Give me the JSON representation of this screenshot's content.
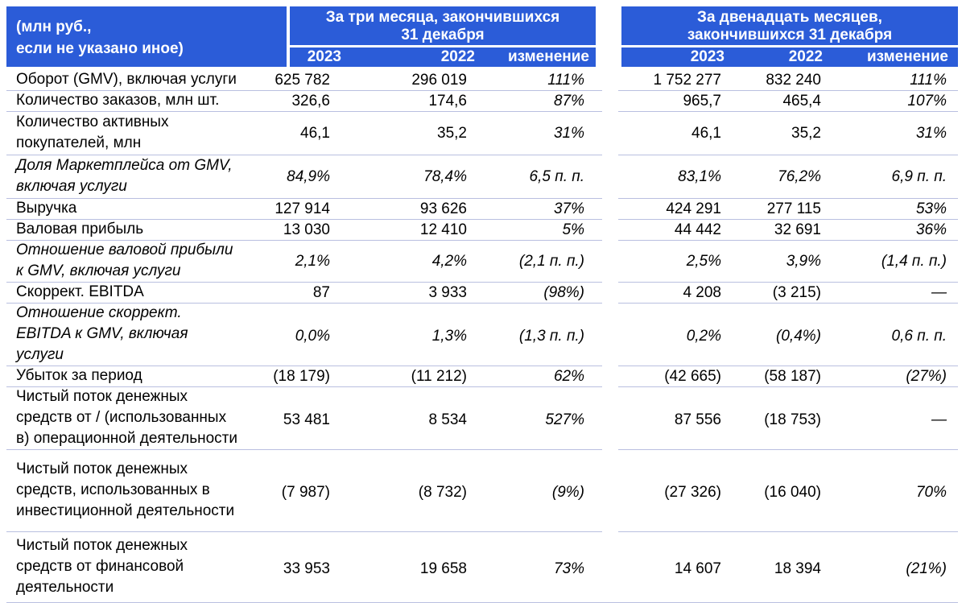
{
  "header": {
    "units_label": "(млн руб., если не указано иное)",
    "units_line1": "(млн руб.,",
    "units_line2": "если не указано иное)",
    "quarter_title_line1": "За три месяца, закончившихся",
    "quarter_title_line2": "31 декабря",
    "annual_title_line1": "За двенадцать месяцев,",
    "annual_title_line2": "закончившихся 31 декабря",
    "col_2023": "2023",
    "col_2022": "2022",
    "col_change": "изменение"
  },
  "rows": [
    {
      "label_lines": [
        "Оборот (GMV), включая услуги"
      ],
      "italic": false,
      "q2023": "625 782",
      "q2022": "296 019",
      "qchg": "111%",
      "a2023": "1 752 277",
      "a2022": "832 240",
      "achg": "111%"
    },
    {
      "label_lines": [
        "Количество заказов, млн шт."
      ],
      "italic": false,
      "q2023": "326,6",
      "q2022": "174,6",
      "qchg": "87%",
      "a2023": "965,7",
      "a2022": "465,4",
      "achg": "107%"
    },
    {
      "label_lines": [
        "Количество активных",
        "покупателей, млн"
      ],
      "italic": false,
      "q2023": "46,1",
      "q2022": "35,2",
      "qchg": "31%",
      "a2023": "46,1",
      "a2022": "35,2",
      "achg": "31%"
    },
    {
      "label_lines": [
        "Доля Маркетплейса от GMV,",
        "включая услуги"
      ],
      "italic": true,
      "q2023": "84,9%",
      "q2022": "78,4%",
      "qchg": "6,5 п. п.",
      "a2023": "83,1%",
      "a2022": "76,2%",
      "achg": "6,9 п. п."
    },
    {
      "label_lines": [
        "Выручка"
      ],
      "italic": false,
      "q2023": "127 914",
      "q2022": "93 626",
      "qchg": "37%",
      "a2023": "424 291",
      "a2022": "277 115",
      "achg": "53%"
    },
    {
      "label_lines": [
        "Валовая прибыль"
      ],
      "italic": false,
      "q2023": "13 030",
      "q2022": "12 410",
      "qchg": "5%",
      "a2023": "44 442",
      "a2022": "32 691",
      "achg": "36%"
    },
    {
      "label_lines": [
        "Отношение валовой прибыли",
        "к GMV, включая услуги"
      ],
      "italic": true,
      "q2023": "2,1%",
      "q2022": "4,2%",
      "qchg": "(2,1 п. п.)",
      "a2023": "2,5%",
      "a2022": "3,9%",
      "achg": "(1,4 п. п.)"
    },
    {
      "label_lines": [
        "Скоррект. EBITDA"
      ],
      "italic": false,
      "q2023": "87",
      "q2022": "3 933",
      "qchg": "(98%)",
      "a2023": "4 208",
      "a2022": "(3 215)",
      "achg": "—"
    },
    {
      "label_lines": [
        "Отношение скоррект.",
        "EBITDA к GMV, включая",
        "услуги"
      ],
      "italic": true,
      "q2023": "0,0%",
      "q2022": "1,3%",
      "qchg": "(1,3 п. п.)",
      "a2023": "0,2%",
      "a2022": "(0,4%)",
      "achg": "0,6 п. п."
    },
    {
      "label_lines": [
        "Убыток за период"
      ],
      "italic": false,
      "q2023": "(18 179)",
      "q2022": "(11 212)",
      "qchg": "62%",
      "a2023": "(42 665)",
      "a2022": "(58 187)",
      "achg": "(27%)"
    },
    {
      "label_lines": [
        "Чистый поток денежных",
        "средств от / (использованных",
        "в) операционной деятельности"
      ],
      "italic": false,
      "q2023": "53 481",
      "q2022": "8 534",
      "qchg": "527%",
      "a2023": "87 556",
      "a2022": "(18 753)",
      "achg": "—"
    },
    {
      "label_lines": [
        "Чистый поток денежных",
        "средств, использованных в",
        "инвестиционной деятельности"
      ],
      "italic": false,
      "q2023": "(7 987)",
      "q2022": "(8 732)",
      "qchg": "(9%)",
      "a2023": "(27 326)",
      "a2022": "(16 040)",
      "achg": "70%"
    },
    {
      "label_lines": [
        "Чистый поток денежных",
        "средств от финансовой",
        "деятельности"
      ],
      "italic": false,
      "q2023": "33 953",
      "q2022": "19 658",
      "qchg": "73%",
      "a2023": "14 607",
      "a2022": "18 394",
      "achg": "(21%)"
    }
  ],
  "colors": {
    "header_bg": "#2b5cd8",
    "header_text": "#ffffff",
    "row_border": "#b9bfe0"
  }
}
